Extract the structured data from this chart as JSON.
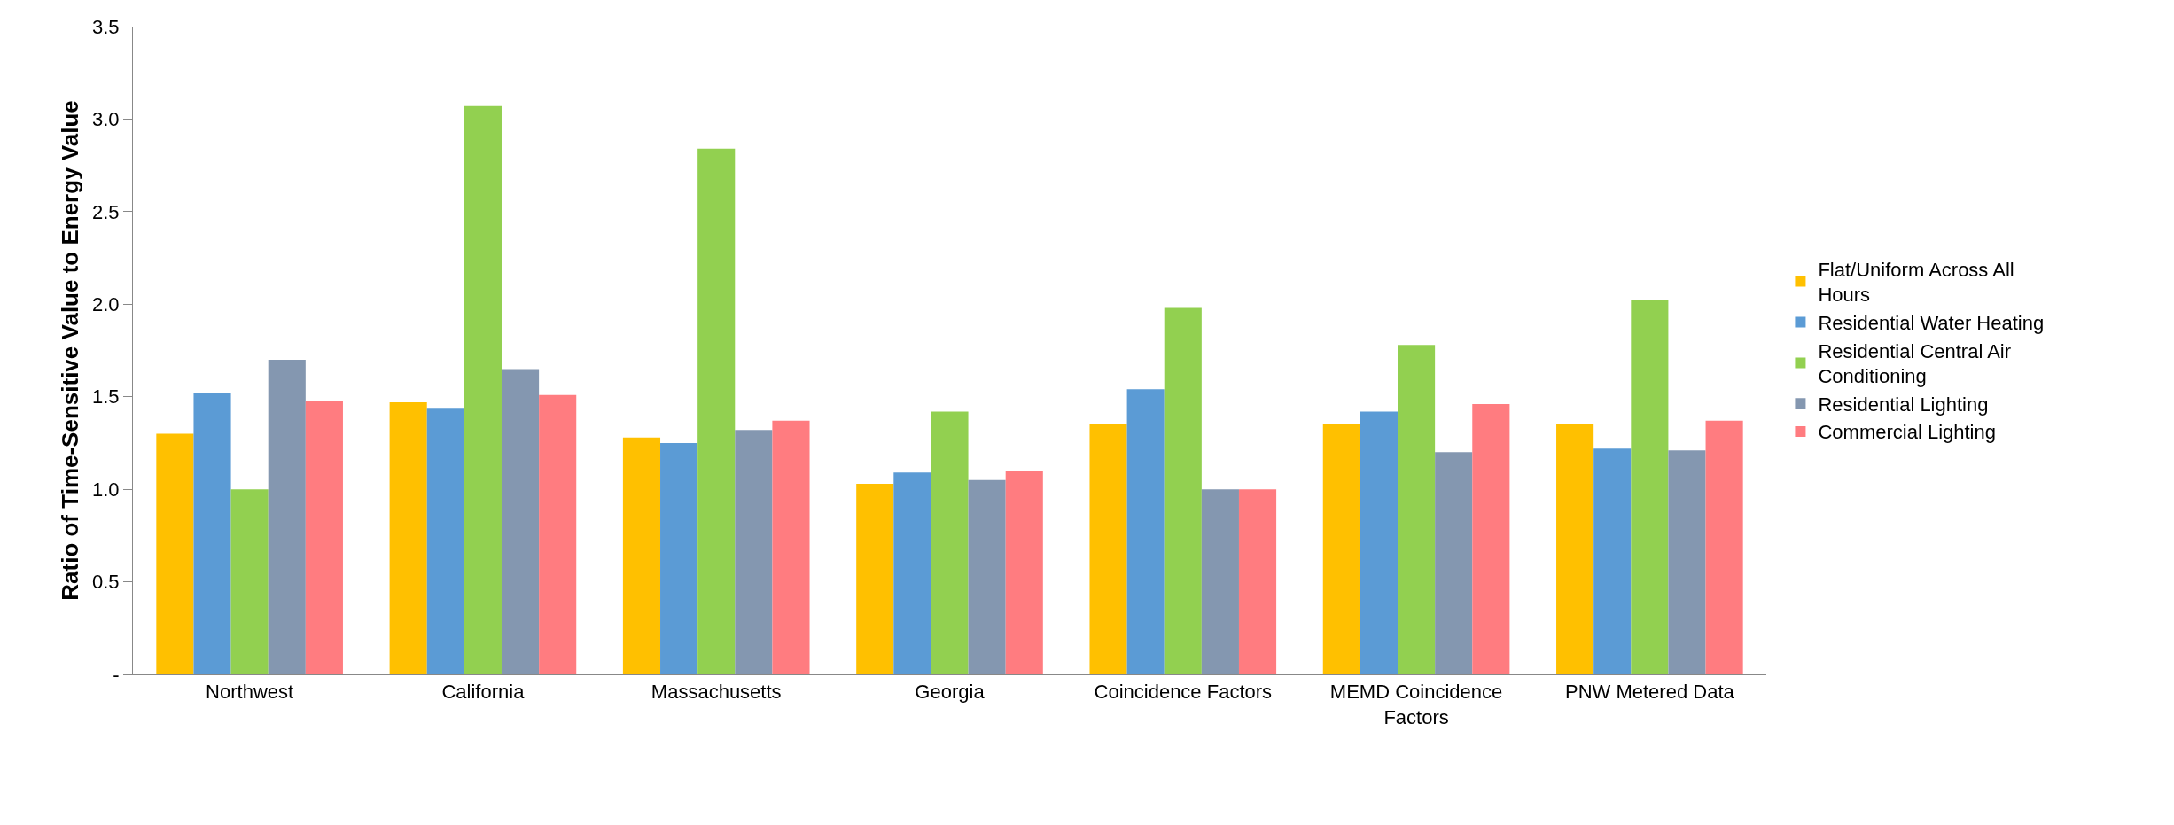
{
  "chart_data": {
    "type": "bar",
    "ylabel": "Ratio of Time-Sensitive Value to Energy Value",
    "categories": [
      "Northwest",
      "California",
      "Massachusetts",
      "Georgia",
      "Coincidence Factors",
      "MEMD Coincidence Factors",
      "PNW Metered Data"
    ],
    "series": [
      {
        "name": "Flat/Uniform Across All Hours",
        "color": "#ffc000",
        "values": [
          1.3,
          1.47,
          1.28,
          1.03,
          1.35,
          1.35,
          1.35
        ]
      },
      {
        "name": "Residential Water Heating",
        "color": "#5b9bd5",
        "values": [
          1.52,
          1.44,
          1.25,
          1.09,
          1.54,
          1.42,
          1.22
        ]
      },
      {
        "name": "Residential Central Air Conditioning",
        "color": "#92d050",
        "values": [
          1.0,
          3.07,
          2.84,
          1.42,
          1.98,
          1.78,
          2.02
        ]
      },
      {
        "name": "Residential Lighting",
        "color": "#8497b0",
        "values": [
          1.7,
          1.65,
          1.32,
          1.05,
          1.0,
          1.2,
          1.21
        ]
      },
      {
        "name": "Commercial Lighting",
        "color": "#ff7c80",
        "values": [
          1.48,
          1.51,
          1.37,
          1.1,
          1.0,
          1.46,
          1.37
        ]
      }
    ],
    "ylim": [
      0,
      3.5
    ],
    "yticks": [
      {
        "value": 0,
        "label": "-"
      },
      {
        "value": 0.5,
        "label": "0.5"
      },
      {
        "value": 1,
        "label": "1.0"
      },
      {
        "value": 1.5,
        "label": "1.5"
      },
      {
        "value": 2,
        "label": "2.0"
      },
      {
        "value": 2.5,
        "label": "2.5"
      },
      {
        "value": 3,
        "label": "3.0"
      },
      {
        "value": 3.5,
        "label": "3.5"
      }
    ],
    "grid": false,
    "legend": "right"
  }
}
